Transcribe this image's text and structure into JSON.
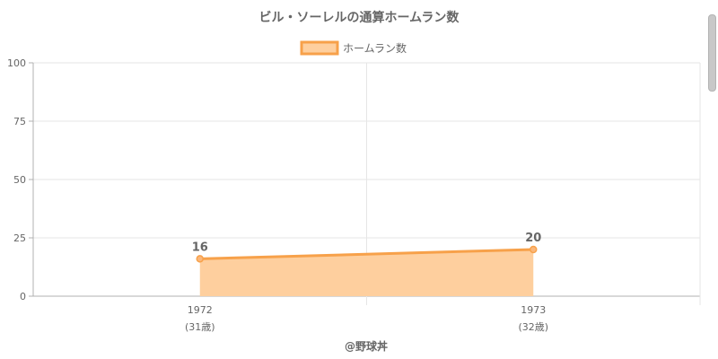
{
  "chart_data": {
    "type": "area",
    "title": "ビル・ソーレルの通算ホームラン数",
    "categories": [
      "1972",
      "1973"
    ],
    "category_sublabels": [
      "(31歳)",
      "(32歳)"
    ],
    "series": [
      {
        "name": "ホームラン数",
        "values": [
          16,
          20
        ]
      }
    ],
    "ylim": [
      0,
      100
    ],
    "yticks": [
      0,
      25,
      50,
      75,
      100
    ],
    "grid": true,
    "legend": "top-center",
    "colors": {
      "line": "#f7a14a",
      "fill": "#fecf9e",
      "grid": "#e6e6e6",
      "axis": "#b0b0b0"
    }
  },
  "credit": "@野球丼"
}
